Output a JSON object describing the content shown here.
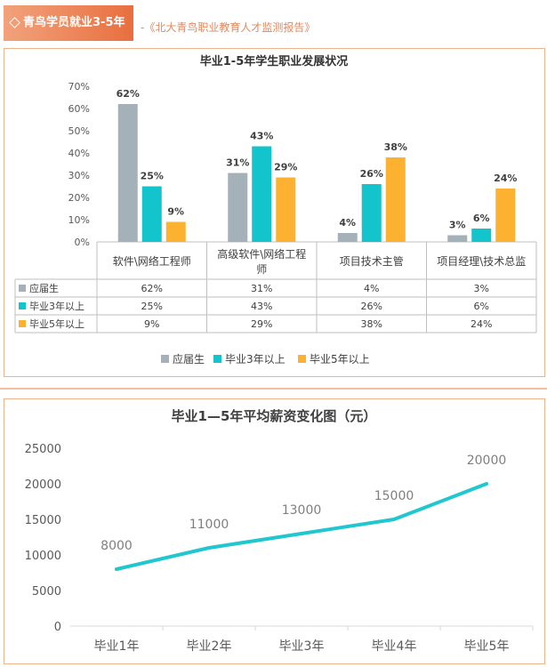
{
  "header": {
    "tag_label": "青鸟学员就业3-5年",
    "source": "-《北大青鸟职业教育人才监测报告》"
  },
  "colors": {
    "accent": "#e8875a",
    "border": "#f0b48c",
    "series": [
      "#a5b1b8",
      "#14c4cc",
      "#fcb131"
    ],
    "line": "#20c7cf"
  },
  "chart_data": [
    {
      "type": "bar",
      "title": "毕业1-5年学生职业发展状况",
      "categories": [
        "软件\\网络工程师",
        "高级软件\\网络工程师",
        "项目技术主管",
        "项目经理\\技术总监"
      ],
      "category_lines": [
        [
          "软件\\网络工程师"
        ],
        [
          "高级软件\\网络工程",
          "师"
        ],
        [
          "项目技术主管"
        ],
        [
          "项目经理\\技术总监"
        ]
      ],
      "series": [
        {
          "name": "应届生",
          "values": [
            62,
            31,
            4,
            3
          ],
          "labels": [
            "62%",
            "31%",
            "4%",
            "3%"
          ]
        },
        {
          "name": "毕业3年以上",
          "values": [
            25,
            43,
            26,
            6
          ],
          "labels": [
            "25%",
            "43%",
            "26%",
            "6%"
          ]
        },
        {
          "name": "毕业5年以上",
          "values": [
            9,
            29,
            38,
            24
          ],
          "labels": [
            "9%",
            "29%",
            "38%",
            "24%"
          ]
        }
      ],
      "ylim": [
        0,
        70
      ],
      "yticks": [
        0,
        10,
        20,
        30,
        40,
        50,
        60,
        70
      ],
      "ytick_labels": [
        "0%",
        "10%",
        "20%",
        "30%",
        "40%",
        "50%",
        "60%",
        "70%"
      ],
      "legend_position": "bottom",
      "has_data_table": true
    },
    {
      "type": "line",
      "title": "毕业1—5年平均薪资变化图（元）",
      "x": [
        "毕业1年",
        "毕业2年",
        "毕业3年",
        "毕业4年",
        "毕业5年"
      ],
      "series": [
        {
          "values": [
            8000,
            11000,
            13000,
            15000,
            20000
          ],
          "labels": [
            "8000",
            "11000",
            "13000",
            "15000",
            "20000"
          ]
        }
      ],
      "ylim": [
        0,
        25000
      ],
      "yticks": [
        0,
        5000,
        10000,
        15000,
        20000,
        25000
      ],
      "ytick_labels": [
        "0",
        "5000",
        "10000",
        "15000",
        "20000",
        "25000"
      ],
      "grid": false
    }
  ]
}
